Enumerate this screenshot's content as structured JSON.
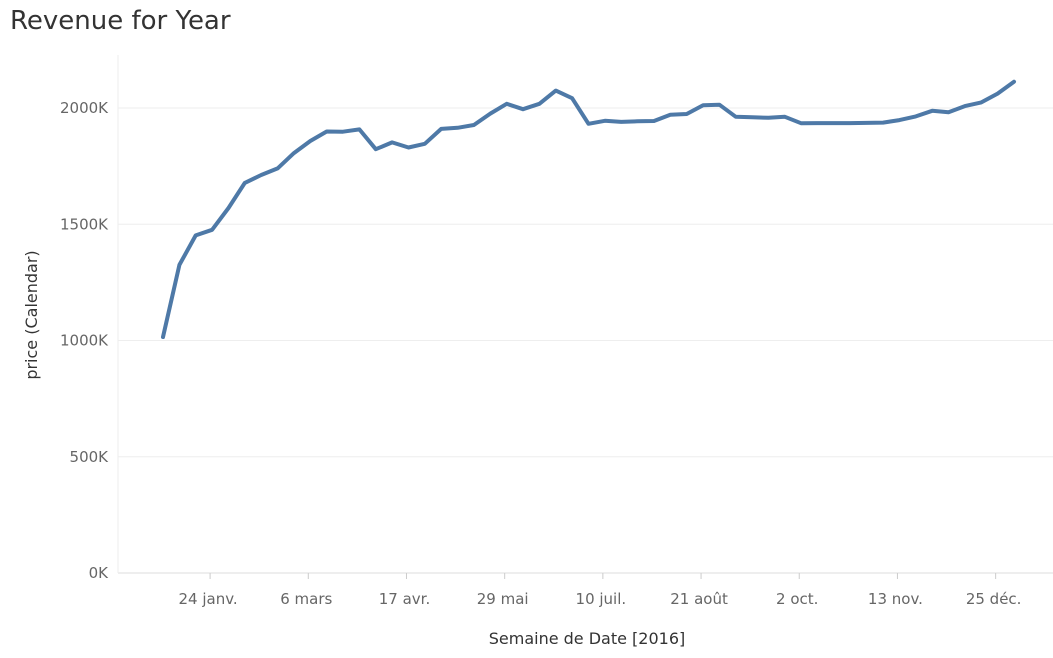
{
  "title": "Revenue for Year",
  "chart_data": {
    "type": "line",
    "title": "Revenue for Year",
    "xlabel": "Semaine de Date [2016]",
    "ylabel": "price (Calendar)",
    "x_ticks": [
      "24 janv.",
      "6 mars",
      "17 avr.",
      "29 mai",
      "10 juil.",
      "21 août",
      "2 oct.",
      "13 nov.",
      "25 déc."
    ],
    "y_ticks": [
      "0K",
      "500K",
      "1000K",
      "1500K",
      "2000K"
    ],
    "ylim": [
      0,
      2200
    ],
    "y_unit": "K",
    "grid": "horizontal",
    "line_color": "#4e79a7",
    "x": [
      1,
      2,
      3,
      4,
      5,
      6,
      7,
      8,
      9,
      10,
      11,
      12,
      13,
      14,
      15,
      16,
      17,
      18,
      19,
      20,
      21,
      22,
      23,
      24,
      25,
      26,
      27,
      28,
      29,
      30,
      31,
      32,
      33,
      34,
      35,
      36,
      37,
      38,
      39,
      40,
      41,
      42,
      43,
      44,
      45,
      46,
      47,
      48,
      49,
      50,
      51,
      52,
      53
    ],
    "values": [
      1015,
      1325,
      1452,
      1476,
      1570,
      1678,
      1712,
      1740,
      1806,
      1858,
      1899,
      1898,
      1908,
      1823,
      1852,
      1830,
      1846,
      1910,
      1915,
      1927,
      1976,
      2018,
      1995,
      2018,
      2075,
      2042,
      1932,
      1945,
      1940,
      1943,
      1944,
      1971,
      1974,
      2012,
      2014,
      1962,
      1960,
      1958,
      1962,
      1934,
      1935,
      1935,
      1935,
      1936,
      1937,
      1948,
      1964,
      1988,
      1982,
      2008,
      2024,
      2062,
      2113
    ]
  }
}
